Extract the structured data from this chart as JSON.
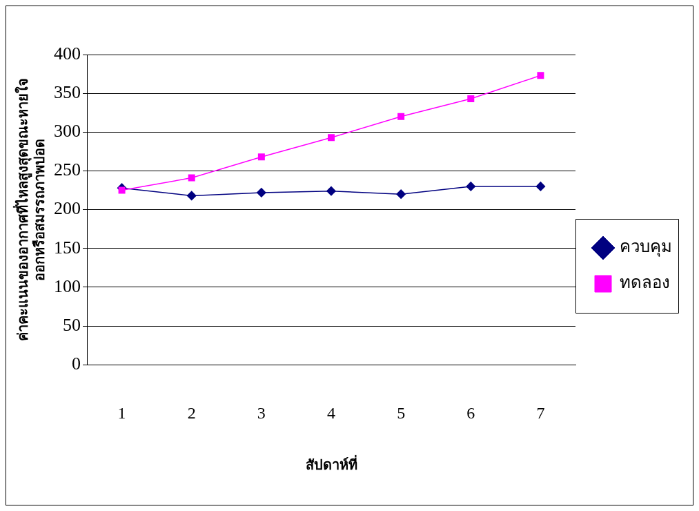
{
  "chart_data": {
    "type": "line",
    "xlabel": "สัปดาห์ที่",
    "ylabel": "ค่าคะแนนของอากาศที่ไหลสูงสุดขณะหายใจ\nออกหรือสมรรถภาพปอด",
    "categories": [
      "1",
      "2",
      "3",
      "4",
      "5",
      "6",
      "7"
    ],
    "series": [
      {
        "name": "ควบคุม",
        "color": "#000080",
        "marker": "diamond",
        "values": [
          228,
          218,
          222,
          224,
          220,
          230,
          230
        ]
      },
      {
        "name": "ทดลอง",
        "color": "#ff00ff",
        "marker": "square",
        "values": [
          225,
          241,
          268,
          293,
          320,
          343,
          373
        ]
      }
    ],
    "ylim": [
      0,
      400
    ],
    "yticks": [
      0,
      50,
      100,
      150,
      200,
      250,
      300,
      350,
      400
    ],
    "grid": "y",
    "legend": "right",
    "line_style": "solid"
  }
}
